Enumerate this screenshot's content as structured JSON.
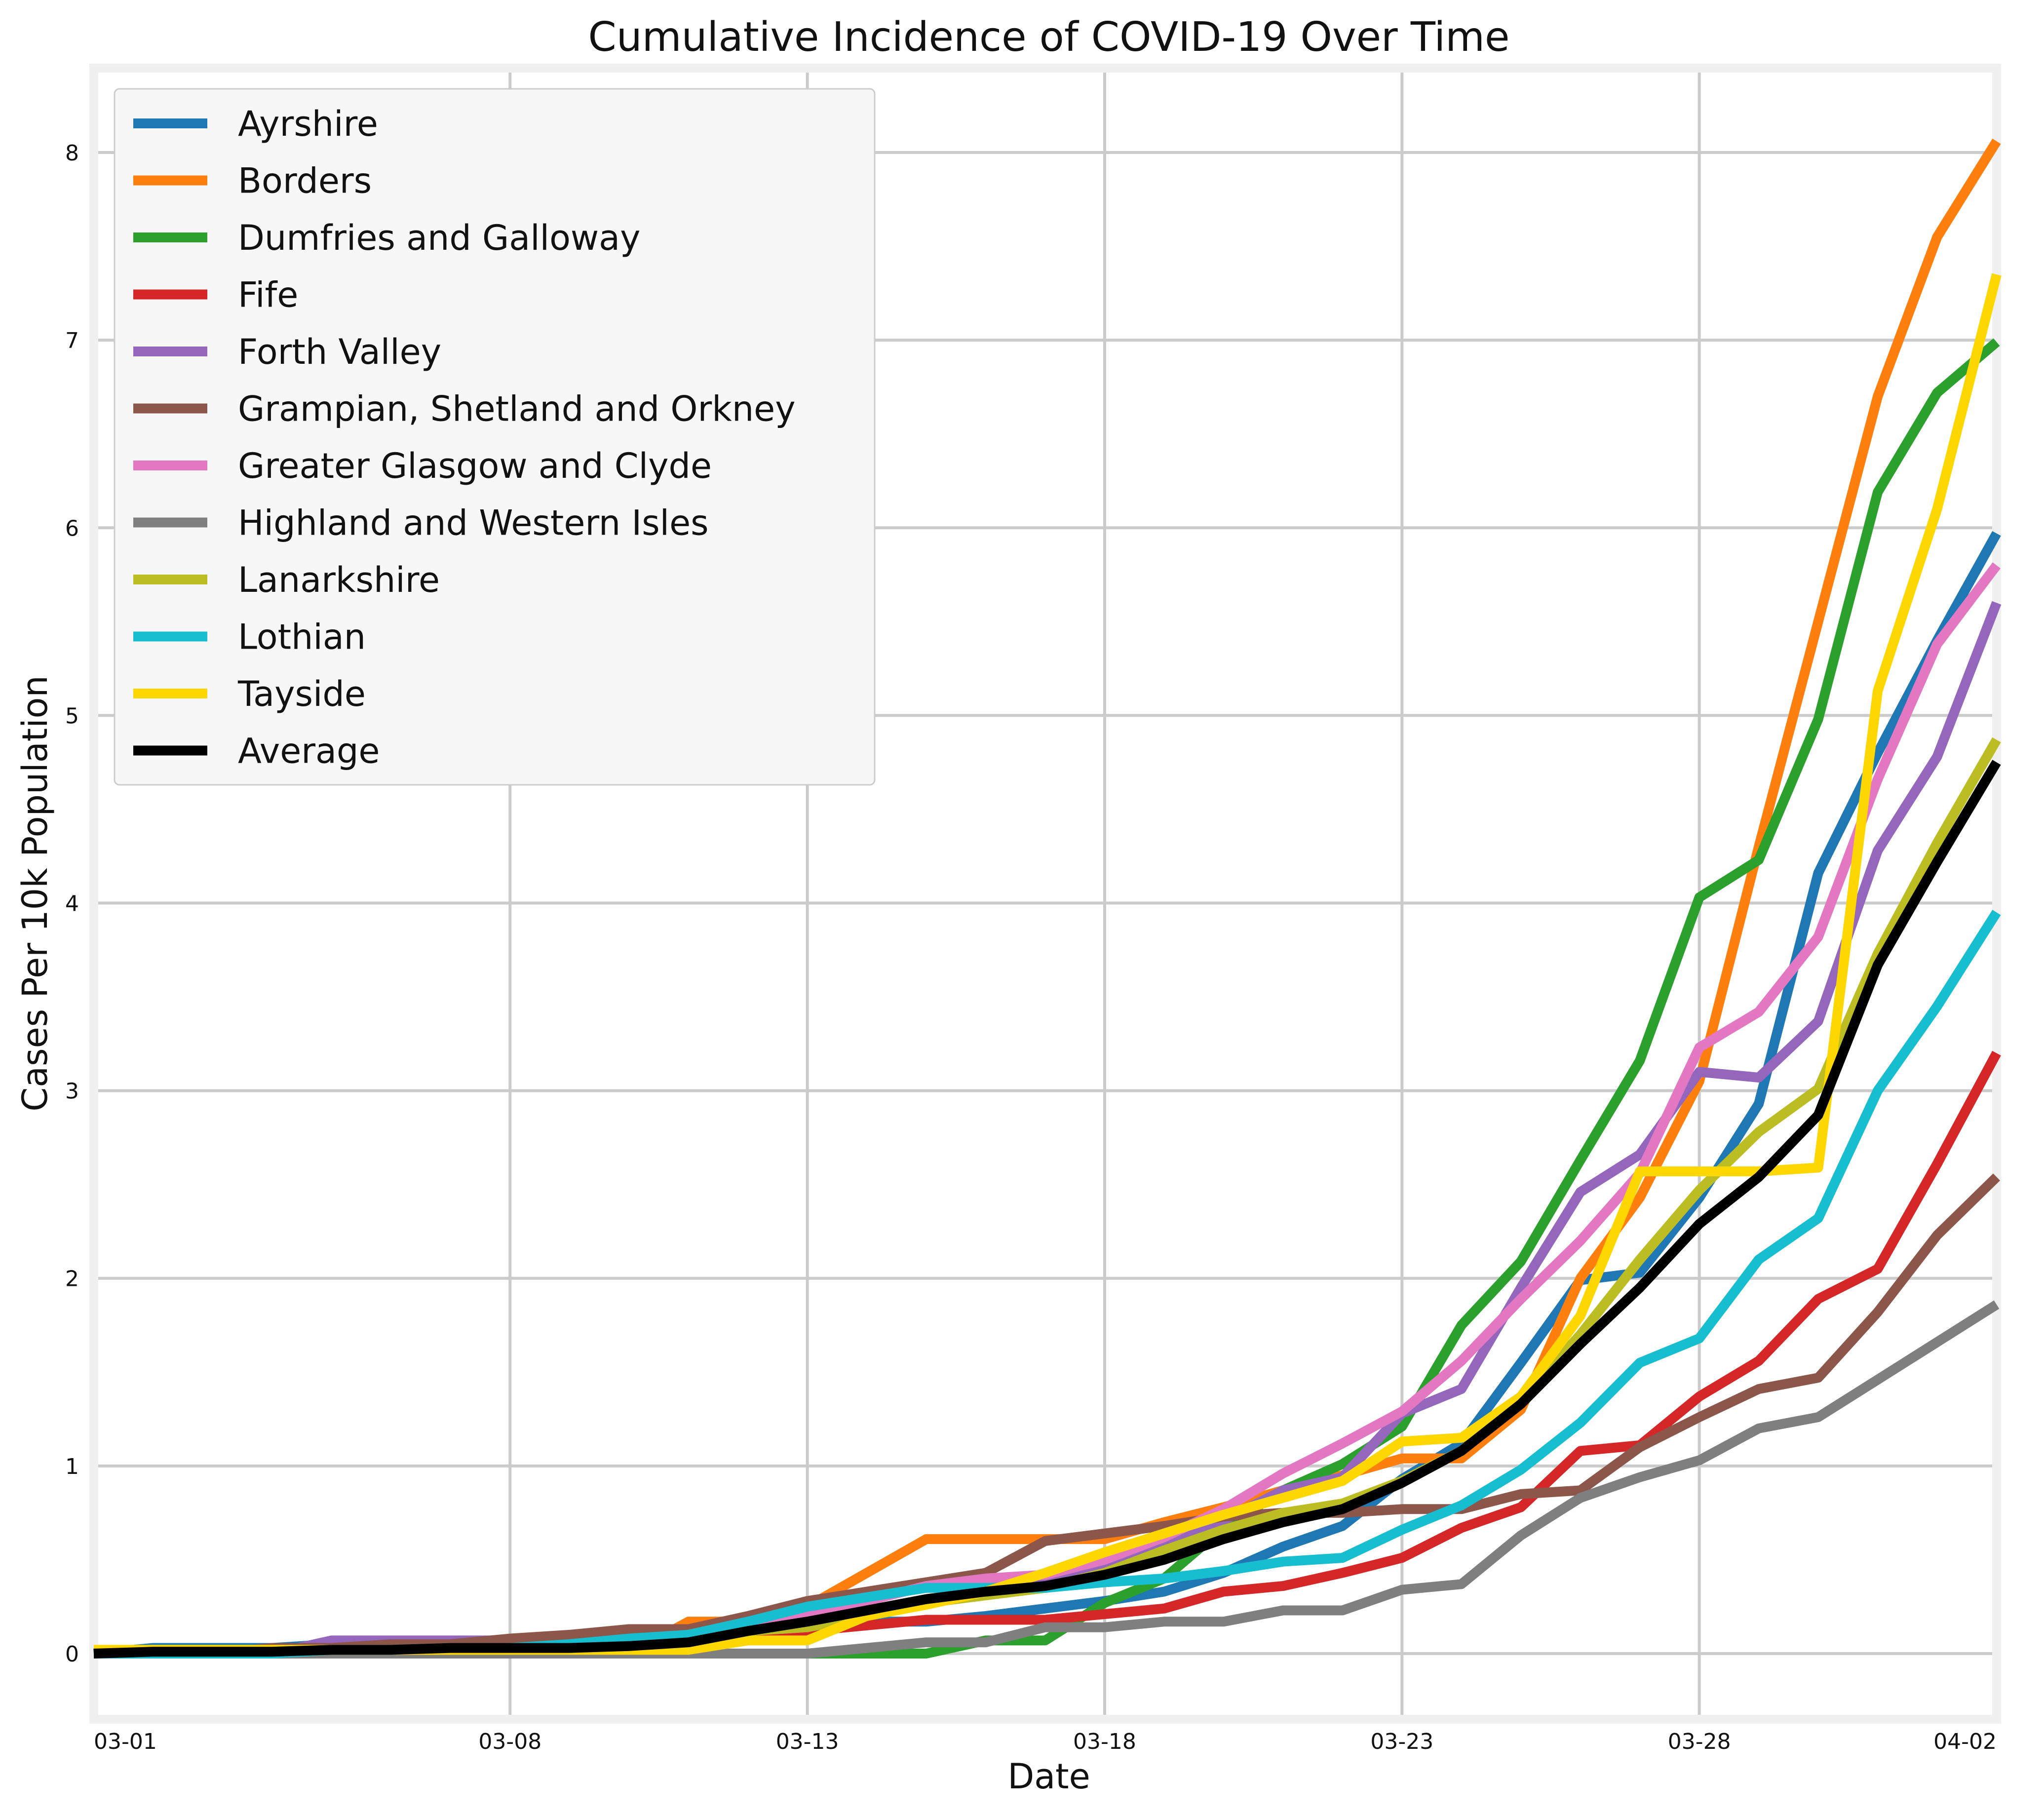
{
  "chart_data": {
    "type": "line",
    "title": "Cumulative Incidence of COVID-19 Over Time",
    "xlabel": "Date",
    "ylabel": "Cases Per 10k Population",
    "x": [
      "03-01",
      "03-02",
      "03-03",
      "03-04",
      "03-05",
      "03-06",
      "03-07",
      "03-08",
      "03-09",
      "03-10",
      "03-11",
      "03-12",
      "03-13",
      "03-14",
      "03-15",
      "03-16",
      "03-17",
      "03-18",
      "03-19",
      "03-20",
      "03-21",
      "03-22",
      "03-23",
      "03-24",
      "03-25",
      "03-26",
      "03-27",
      "03-28",
      "03-29",
      "03-30",
      "03-31",
      "04-01",
      "04-02"
    ],
    "x_tick_labels": [
      "03-01",
      "03-08",
      "03-13",
      "03-18",
      "03-23",
      "03-28",
      "04-02"
    ],
    "y_ticks": [
      0,
      1,
      2,
      3,
      4,
      5,
      6,
      7,
      8
    ],
    "ylim": [
      -0.35,
      8.45
    ],
    "grid": true,
    "legend_position": "top-left",
    "series": [
      {
        "name": "Ayrshire",
        "color": "#1f77b4",
        "values": [
          0,
          0.03,
          0.03,
          0.03,
          0.05,
          0.05,
          0.05,
          0.05,
          0.07,
          0.07,
          0.1,
          0.14,
          0.17,
          0.17,
          0.17,
          0.2,
          0.24,
          0.28,
          0.33,
          0.43,
          0.57,
          0.68,
          0.93,
          1.12,
          1.55,
          1.99,
          2.03,
          2.43,
          2.93,
          4.16,
          4.8,
          5.4,
          5.97
        ]
      },
      {
        "name": "Borders",
        "color": "#ff7f0e",
        "values": [
          0,
          0,
          0,
          0,
          0,
          0,
          0,
          0,
          0,
          0,
          0.17,
          0.17,
          0.25,
          0.43,
          0.61,
          0.61,
          0.61,
          0.61,
          0.7,
          0.78,
          0.87,
          0.95,
          1.04,
          1.04,
          1.3,
          2.0,
          2.43,
          3.05,
          4.3,
          5.5,
          6.7,
          7.55,
          8.06
        ]
      },
      {
        "name": "Dumfries and Galloway",
        "color": "#2ca02c",
        "values": [
          0,
          0,
          0,
          0,
          0,
          0,
          0,
          0,
          0,
          0,
          0,
          0,
          0,
          0,
          0,
          0.07,
          0.07,
          0.27,
          0.4,
          0.67,
          0.87,
          1.01,
          1.21,
          1.75,
          2.09,
          2.63,
          3.16,
          4.03,
          4.23,
          4.98,
          6.19,
          6.72,
          6.99
        ]
      },
      {
        "name": "Fife",
        "color": "#d62728",
        "values": [
          0,
          0,
          0,
          0,
          0,
          0,
          0,
          0,
          0,
          0,
          0.06,
          0.12,
          0.12,
          0.15,
          0.18,
          0.18,
          0.18,
          0.21,
          0.24,
          0.33,
          0.36,
          0.43,
          0.51,
          0.67,
          0.78,
          1.08,
          1.11,
          1.37,
          1.56,
          1.89,
          2.05,
          2.61,
          3.2
        ]
      },
      {
        "name": "Forth Valley",
        "color": "#9467bd",
        "values": [
          0,
          0,
          0,
          0,
          0.07,
          0.07,
          0.07,
          0.07,
          0.07,
          0.07,
          0.1,
          0.17,
          0.24,
          0.3,
          0.37,
          0.37,
          0.37,
          0.47,
          0.57,
          0.71,
          0.87,
          0.94,
          1.28,
          1.41,
          1.95,
          2.46,
          2.66,
          3.1,
          3.07,
          3.37,
          4.28,
          4.78,
          5.6
        ]
      },
      {
        "name": "Grampian, Shetland and Orkney",
        "color": "#8c564b",
        "values": [
          0,
          0,
          0,
          0.03,
          0.03,
          0.05,
          0.05,
          0.08,
          0.1,
          0.13,
          0.13,
          0.2,
          0.28,
          0.33,
          0.38,
          0.43,
          0.6,
          0.64,
          0.68,
          0.73,
          0.75,
          0.75,
          0.77,
          0.77,
          0.85,
          0.87,
          1.1,
          1.26,
          1.41,
          1.47,
          1.82,
          2.23,
          2.54
        ]
      },
      {
        "name": "Greater Glasgow and Clyde",
        "color": "#e377c2",
        "values": [
          0,
          0,
          0,
          0,
          0.02,
          0.02,
          0.02,
          0.03,
          0.04,
          0.06,
          0.08,
          0.12,
          0.2,
          0.28,
          0.36,
          0.4,
          0.42,
          0.5,
          0.62,
          0.77,
          0.96,
          1.12,
          1.29,
          1.56,
          1.89,
          2.2,
          2.56,
          3.23,
          3.42,
          3.82,
          4.66,
          5.38,
          5.8
        ]
      },
      {
        "name": "Highland and Western Isles",
        "color": "#7f7f7f",
        "values": [
          0,
          0,
          0,
          0,
          0,
          0,
          0,
          0,
          0,
          0,
          0,
          0,
          0,
          0.03,
          0.06,
          0.06,
          0.14,
          0.14,
          0.17,
          0.17,
          0.23,
          0.23,
          0.34,
          0.37,
          0.63,
          0.83,
          0.94,
          1.03,
          1.2,
          1.26,
          1.46,
          1.66,
          1.86
        ]
      },
      {
        "name": "Lanarkshire",
        "color": "#bcbd22",
        "values": [
          0,
          0,
          0,
          0,
          0.02,
          0.02,
          0.02,
          0.02,
          0.04,
          0.04,
          0.06,
          0.12,
          0.14,
          0.2,
          0.27,
          0.31,
          0.35,
          0.43,
          0.55,
          0.66,
          0.75,
          0.8,
          0.92,
          1.08,
          1.35,
          1.7,
          2.1,
          2.47,
          2.78,
          3.01,
          3.73,
          4.32,
          4.87
        ]
      },
      {
        "name": "Lothian",
        "color": "#17becf",
        "values": [
          0,
          0,
          0,
          0,
          0.02,
          0.02,
          0.03,
          0.03,
          0.05,
          0.08,
          0.1,
          0.17,
          0.25,
          0.3,
          0.35,
          0.35,
          0.35,
          0.38,
          0.4,
          0.44,
          0.49,
          0.51,
          0.66,
          0.79,
          0.98,
          1.23,
          1.55,
          1.68,
          2.1,
          2.32,
          3.0,
          3.45,
          3.95
        ]
      },
      {
        "name": "Tayside",
        "color": "#ffd700",
        "values": [
          0.02,
          0.02,
          0.02,
          0.02,
          0.02,
          0.02,
          0.02,
          0.02,
          0.02,
          0.02,
          0.02,
          0.07,
          0.07,
          0.2,
          0.26,
          0.33,
          0.43,
          0.54,
          0.64,
          0.74,
          0.83,
          0.92,
          1.13,
          1.15,
          1.37,
          1.8,
          2.57,
          2.57,
          2.57,
          2.59,
          5.13,
          6.1,
          7.35
        ]
      },
      {
        "name": "Average",
        "color": "#000000",
        "values": [
          0,
          0.01,
          0.01,
          0.01,
          0.02,
          0.02,
          0.03,
          0.03,
          0.03,
          0.04,
          0.06,
          0.12,
          0.17,
          0.23,
          0.29,
          0.33,
          0.36,
          0.42,
          0.5,
          0.61,
          0.7,
          0.77,
          0.91,
          1.08,
          1.33,
          1.65,
          1.95,
          2.29,
          2.54,
          2.87,
          3.67,
          4.22,
          4.75
        ]
      }
    ]
  }
}
